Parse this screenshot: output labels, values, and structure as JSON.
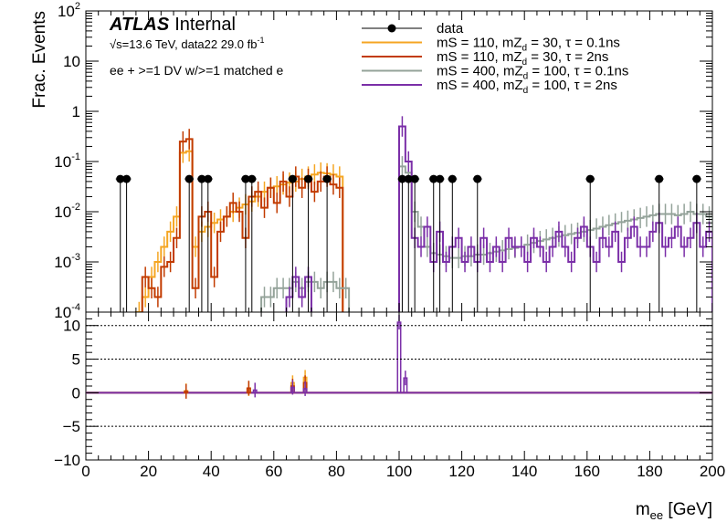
{
  "header": {
    "experiment": "ATLAS",
    "status": "Internal",
    "energy_label": "√s=13.6 TeV, data22 29.0 fb",
    "lumi_exponent": "-1",
    "selection": "ee + >=1 DV w/>=1 matched e"
  },
  "chart_data": [
    {
      "type": "line",
      "panel": "main",
      "ylabel": "Frac. Events",
      "yscale": "log",
      "ylim": [
        0.0001,
        100
      ],
      "xlim": [
        0,
        200
      ],
      "y_ticks": [
        {
          "v": 100,
          "base": "10",
          "exp": "2"
        },
        {
          "v": 10,
          "base": "10",
          "exp": ""
        },
        {
          "v": 1,
          "base": "1",
          "exp": ""
        },
        {
          "v": 0.1,
          "base": "10",
          "exp": "-1"
        },
        {
          "v": 0.01,
          "base": "10",
          "exp": "-2"
        },
        {
          "v": 0.001,
          "base": "10",
          "exp": "-3"
        },
        {
          "v": 0.0001,
          "base": "10",
          "exp": "-4"
        }
      ],
      "legend_position": "top-right",
      "data_points": {
        "name": "data",
        "color": "#000000",
        "x": [
          11,
          13,
          33,
          37,
          39,
          51,
          53,
          66,
          71,
          77,
          101,
          103,
          105,
          111,
          113,
          117,
          125,
          161,
          183,
          195
        ],
        "y": [
          0.045,
          0.045,
          0.045,
          0.045,
          0.045,
          0.045,
          0.045,
          0.045,
          0.045,
          0.045,
          0.045,
          0.045,
          0.045,
          0.045,
          0.045,
          0.045,
          0.045,
          0.045,
          0.045,
          0.045
        ]
      },
      "series": [
        {
          "name": "mS = 110, mZd = 30, τ = 0.1ns",
          "legend": {
            "pre": "mS = 110, mZ",
            "sub": "d",
            "post": " = 30, τ = 0.1ns"
          },
          "color": "#f5a623",
          "bin_width": 2,
          "x_start": 16,
          "values": [
            0.0001,
            0.0002,
            0.0005,
            0.001,
            0.002,
            0.004,
            0.008,
            0.15,
            0.16,
            0.002,
            0.004,
            0.005,
            0.006,
            0.007,
            0.008,
            0.01,
            0.012,
            0.014,
            0.016,
            0.02,
            0.025,
            0.03,
            0.032,
            0.035,
            0.038,
            0.04,
            0.045,
            0.05,
            0.055,
            0.06,
            0.058,
            0.055,
            0.05
          ]
        },
        {
          "name": "mS = 110, mZd = 30, τ = 2ns",
          "legend": {
            "pre": "mS = 110, mZ",
            "sub": "d",
            "post": " = 30, τ = 2ns"
          },
          "color": "#c23b00",
          "bin_width": 2,
          "x_start": 18,
          "values": [
            0.0005,
            0.0003,
            0.0002,
            0.0008,
            0.001,
            0.003,
            0.25,
            0.28,
            0.0003,
            0.008,
            0.01,
            0.0005,
            0.004,
            0.008,
            0.015,
            0.01,
            0.003,
            0.02,
            0.025,
            0.012,
            0.03,
            0.015,
            0.04,
            0.02,
            0.05,
            0.03,
            0.045,
            0.025,
            0.04,
            0.05,
            0.035,
            0.03
          ]
        },
        {
          "name": "mS = 400, mZd = 100, τ = 0.1ns",
          "legend": {
            "pre": "mS = 400, mZ",
            "sub": "d",
            "post": " = 100, τ = 0.1ns"
          },
          "color": "#94a39a",
          "bin_width": 2,
          "x_start": 56,
          "values": [
            0.0002,
            0.0002,
            0.0003,
            0.0003,
            0.0003,
            0.0004,
            0.0003,
            0.0004,
            0.0004,
            0.0003,
            0.0004,
            0.0004,
            0.0003,
            0.0003,
            0.0,
            0.0,
            0.0,
            0.0,
            0.0,
            0.0,
            0.0,
            0.0,
            0.08,
            0.06,
            0.01,
            0.005,
            0.002,
            0.0015,
            0.0014,
            0.0013,
            0.0012,
            0.0012,
            0.0013,
            0.0013,
            0.0014,
            0.0014,
            0.0015,
            0.0016,
            0.0017,
            0.0018,
            0.0019,
            0.002,
            0.0022,
            0.0024,
            0.0026,
            0.0028,
            0.003,
            0.0032,
            0.0034,
            0.0036,
            0.0038,
            0.004,
            0.0043,
            0.0046,
            0.005,
            0.0054,
            0.0058,
            0.0062,
            0.0066,
            0.007,
            0.0075,
            0.008,
            0.0085,
            0.009,
            0.009,
            0.009,
            0.0085,
            0.009,
            0.01,
            0.009,
            0.009,
            0.008
          ]
        },
        {
          "name": "mS = 400, mZd = 100, τ = 2ns",
          "legend": {
            "pre": "mS = 400, mZ",
            "sub": "d",
            "post": " = 100, τ = 2ns"
          },
          "color": "#7b2fa8",
          "bin_width": 2,
          "x_start": 64,
          "values": [
            0.0002,
            0.0005,
            0.0002,
            0.0005,
            0.0,
            0.0,
            0.0,
            0.0,
            0.0,
            0.0,
            0.0,
            0.0,
            0.0,
            0.0,
            0.0,
            0.0,
            0.0,
            0.0,
            0.5,
            0.1,
            0.003,
            0.002,
            0.005,
            0.001,
            0.004,
            0.001,
            0.002,
            0.003,
            0.001,
            0.002,
            0.001,
            0.003,
            0.001,
            0.002,
            0.001,
            0.003,
            0.002,
            0.002,
            0.001,
            0.003,
            0.002,
            0.001,
            0.002,
            0.004,
            0.002,
            0.001,
            0.003,
            0.005,
            0.002,
            0.001,
            0.003,
            0.002,
            0.004,
            0.001,
            0.003,
            0.005,
            0.002,
            0.002,
            0.004,
            0.006,
            0.002,
            0.003,
            0.005,
            0.002,
            0.003,
            0.006,
            0.002,
            0.004
          ]
        }
      ]
    },
    {
      "type": "line",
      "panel": "ratio",
      "ylim": [
        -10,
        12
      ],
      "y_ticks": [
        10,
        5,
        0,
        -5,
        -10
      ],
      "xlim": [
        0,
        200
      ],
      "x_ticks": [
        0,
        20,
        40,
        60,
        80,
        100,
        120,
        140,
        160,
        180,
        200
      ],
      "xlabel": {
        "base": "m",
        "sub": "ee",
        "post": " [GeV]"
      },
      "dotted_lines": [
        10,
        5,
        -5
      ],
      "series": [
        {
          "color": "#f5a623",
          "x": [
            32,
            52,
            66,
            70
          ],
          "y": [
            0.3,
            0.6,
            1.5,
            2.3
          ]
        },
        {
          "color": "#c23b00",
          "x": [
            32,
            52,
            66,
            70
          ],
          "y": [
            0.2,
            0.7,
            1.0,
            1.5
          ]
        },
        {
          "color": "#7b2fa8",
          "x": [
            100,
            102,
            54,
            66,
            70
          ],
          "y": [
            10.5,
            2.2,
            0.4,
            0.8,
            0.6
          ]
        }
      ]
    }
  ]
}
